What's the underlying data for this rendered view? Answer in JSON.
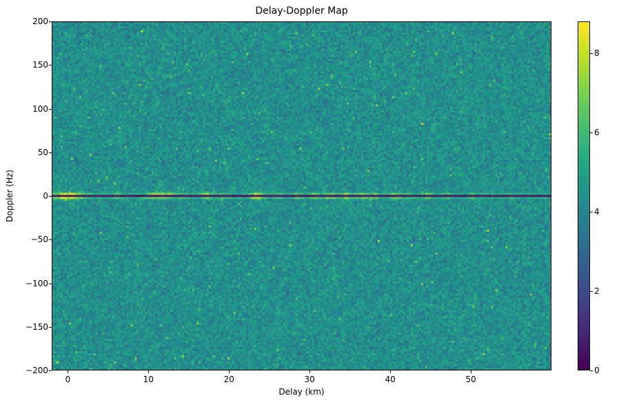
{
  "chart_data": {
    "type": "heatmap",
    "title": "Delay-Doppler Map",
    "xlabel": "Delay (km)",
    "ylabel": "Doppler (Hz)",
    "x_range": [
      -2,
      60
    ],
    "y_range": [
      -200,
      200
    ],
    "clim": [
      0,
      8.8
    ],
    "grid": false,
    "legend": false,
    "colormap": "viridis",
    "colormap_stops": [
      [
        0.0,
        "#440154"
      ],
      [
        0.1,
        "#482475"
      ],
      [
        0.2,
        "#414487"
      ],
      [
        0.3,
        "#355f8d"
      ],
      [
        0.4,
        "#2a788e"
      ],
      [
        0.5,
        "#21918c"
      ],
      [
        0.6,
        "#22a884"
      ],
      [
        0.7,
        "#44bf70"
      ],
      [
        0.8,
        "#7ad151"
      ],
      [
        0.9,
        "#bddf26"
      ],
      [
        1.0,
        "#fde725"
      ]
    ],
    "xticks": [
      {
        "v": 0,
        "label": "0"
      },
      {
        "v": 10,
        "label": "10"
      },
      {
        "v": 20,
        "label": "20"
      },
      {
        "v": 30,
        "label": "30"
      },
      {
        "v": 40,
        "label": "40"
      },
      {
        "v": 50,
        "label": "50"
      }
    ],
    "yticks": [
      {
        "v": 200,
        "label": "200"
      },
      {
        "v": 150,
        "label": "150"
      },
      {
        "v": 100,
        "label": "100"
      },
      {
        "v": 50,
        "label": "50"
      },
      {
        "v": 0,
        "label": "0"
      },
      {
        "v": -50,
        "label": "−50"
      },
      {
        "v": -100,
        "label": "−100"
      },
      {
        "v": -150,
        "label": "−150"
      },
      {
        "v": -200,
        "label": "−200"
      }
    ],
    "colorbar_ticks": [
      {
        "v": 0,
        "label": "0"
      },
      {
        "v": 2,
        "label": "2"
      },
      {
        "v": 4,
        "label": "4"
      },
      {
        "v": 6,
        "label": "6"
      },
      {
        "v": 8,
        "label": "8"
      }
    ],
    "description": "Noisy teal speckle background (values ~3-6) over the full delay-Doppler plane, with a thin dark line exactly at 0 Hz Doppler flanked by a bright clutter ridge; bright yellow hotspots on the ridge near delays 0, 11, 12.5, 17, 23.5 km and scattered bright spots between 28 and 47 km.",
    "noise": {
      "seed": 1337,
      "cols": 242,
      "rows": 169,
      "mean": 4.35,
      "std": 0.55,
      "speck_prob": 0.008,
      "speck_boost_min": 0.9,
      "speck_boost_span": 1.5
    },
    "zero_doppler": {
      "doppler_hz": 0,
      "dark_value": 0.35,
      "bright_base": 4.8,
      "bright_noise": 1.0,
      "hotspots": [
        [
          0,
          3.9,
          1.3
        ],
        [
          6.2,
          1.1,
          0.4
        ],
        [
          10.9,
          2.4,
          0.8
        ],
        [
          12.4,
          1.9,
          0.5
        ],
        [
          14.1,
          1.2,
          0.4
        ],
        [
          17.1,
          2.1,
          0.5
        ],
        [
          19.2,
          1.1,
          0.4
        ],
        [
          23.4,
          3.4,
          0.55
        ],
        [
          26.0,
          1.0,
          0.4
        ],
        [
          28.6,
          1.2,
          0.45
        ],
        [
          30.6,
          1.7,
          0.5
        ],
        [
          32.6,
          1.9,
          0.5
        ],
        [
          34.6,
          1.9,
          0.6
        ],
        [
          36.6,
          1.7,
          0.5
        ],
        [
          38.2,
          1.5,
          0.45
        ],
        [
          40.6,
          1.9,
          0.5
        ],
        [
          42.2,
          1.3,
          0.4
        ],
        [
          44.6,
          1.7,
          0.5
        ],
        [
          47.0,
          1.1,
          0.4
        ],
        [
          50.2,
          0.9,
          0.4
        ],
        [
          55.0,
          0.8,
          0.4
        ]
      ]
    }
  }
}
